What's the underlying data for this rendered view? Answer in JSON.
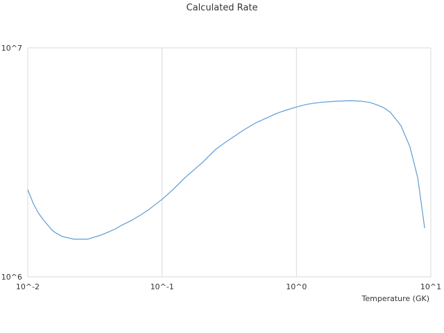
{
  "chart_data": {
    "type": "line",
    "title": "Calculated Rate",
    "xlabel": "Temperature (GK)",
    "ylabel": "",
    "x_scale": "log",
    "y_scale": "log",
    "xlim": [
      0.01,
      10
    ],
    "ylim": [
      1000000,
      10000000
    ],
    "x_ticks": [
      {
        "value": 0.01,
        "label": "10^-2"
      },
      {
        "value": 0.1,
        "label": "10^-1"
      },
      {
        "value": 1,
        "label": "10^0"
      },
      {
        "value": 10,
        "label": "10^1"
      }
    ],
    "y_ticks": [
      {
        "value": 1000000,
        "label": "10^6"
      },
      {
        "value": 10000000,
        "label": "10^7"
      }
    ],
    "grid": {
      "x": true,
      "y": true
    },
    "legend": "none",
    "line_color": "#5b9bd5",
    "series": [
      {
        "name": "",
        "x": [
          0.01,
          0.011,
          0.012,
          0.013,
          0.014,
          0.015,
          0.016,
          0.017,
          0.018,
          0.02,
          0.022,
          0.025,
          0.028,
          0.03,
          0.035,
          0.04,
          0.045,
          0.05,
          0.06,
          0.07,
          0.08,
          0.09,
          0.1,
          0.12,
          0.15,
          0.2,
          0.25,
          0.3,
          0.4,
          0.5,
          0.6,
          0.7,
          0.8,
          1,
          1.2,
          1.5,
          2,
          2.5,
          3,
          3.5,
          4,
          4.5,
          5,
          6,
          7,
          8,
          9
        ],
        "y": [
          2400000,
          2090000,
          1900000,
          1780000,
          1690000,
          1610000,
          1560000,
          1530000,
          1500000,
          1480000,
          1460000,
          1460000,
          1460000,
          1480000,
          1520000,
          1570000,
          1620000,
          1680000,
          1770000,
          1870000,
          1970000,
          2080000,
          2180000,
          2400000,
          2730000,
          3160000,
          3600000,
          3890000,
          4360000,
          4710000,
          4940000,
          5150000,
          5300000,
          5520000,
          5670000,
          5780000,
          5850000,
          5880000,
          5850000,
          5780000,
          5630000,
          5460000,
          5230000,
          4570000,
          3690000,
          2700000,
          1630000
        ]
      }
    ]
  }
}
